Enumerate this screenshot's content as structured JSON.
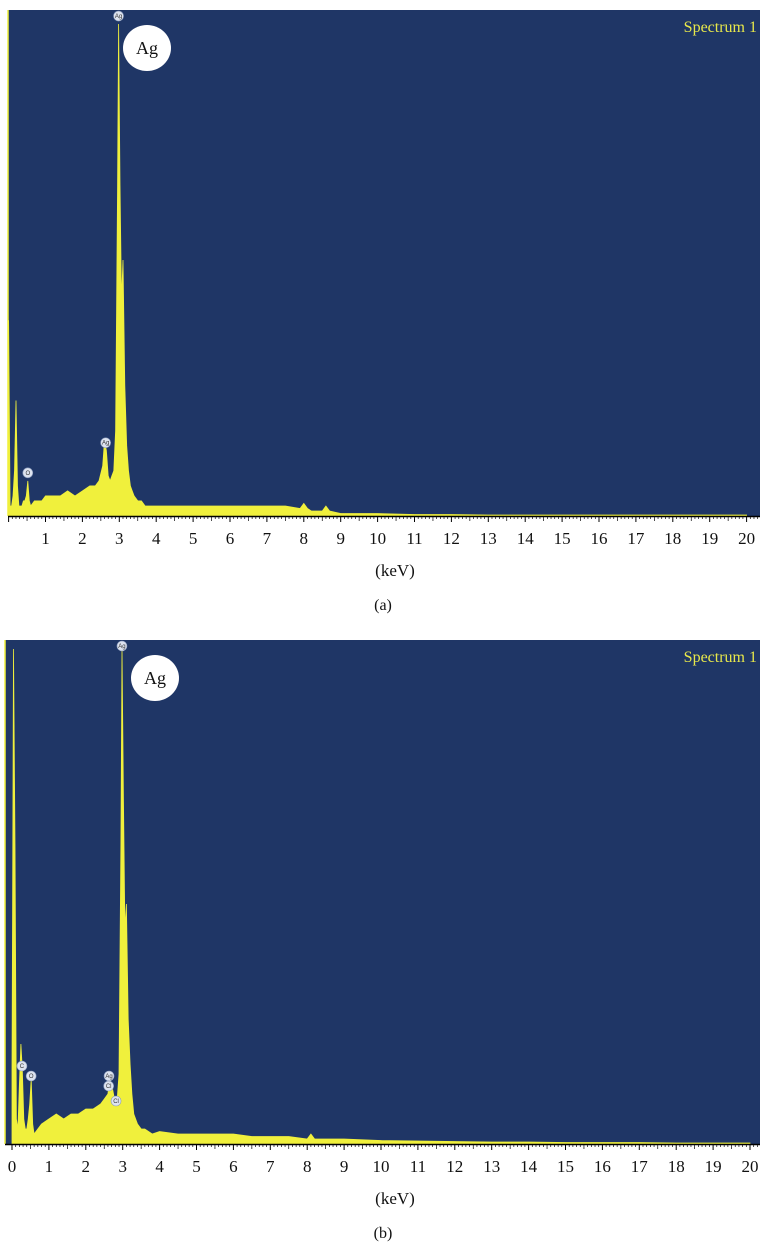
{
  "colors": {
    "plot_background": "#1f3666",
    "spectrum": "#f0f03c",
    "spectrum_label": "#e8e84a",
    "axis": "#000000",
    "callout_fill": "#ffffff"
  },
  "chart_data": [
    {
      "type": "area",
      "panel": "a",
      "caption": "(a)",
      "spectrum_label": "Spectrum 1",
      "xlabel": "(keV)",
      "ylabel": "",
      "xlim": [
        0,
        20
      ],
      "x_ticks": [
        "1",
        "2",
        "3",
        "4",
        "5",
        "6",
        "7",
        "8",
        "9",
        "10",
        "11",
        "12",
        "13",
        "14",
        "15",
        "16",
        "17",
        "18",
        "19",
        "20"
      ],
      "callout": "Ag",
      "markers": [
        {
          "label": "O",
          "x": 0.52,
          "y": 0.07
        },
        {
          "label": "Ag",
          "x": 2.63,
          "y": 0.13
        },
        {
          "label": "Ag",
          "x": 2.98,
          "y": 0.98
        }
      ],
      "series": [
        {
          "x": [
            0.0,
            0.04,
            0.08,
            0.12,
            0.16,
            0.2,
            0.24,
            0.28,
            0.32,
            0.36,
            0.4,
            0.44,
            0.48,
            0.52,
            0.56,
            0.6,
            0.7,
            0.8,
            0.9,
            1.0,
            1.2,
            1.4,
            1.6,
            1.8,
            2.0,
            2.2,
            2.35,
            2.45,
            2.55,
            2.6,
            2.65,
            2.7,
            2.75,
            2.8,
            2.85,
            2.9,
            2.95,
            2.98,
            3.02,
            3.06,
            3.1,
            3.15,
            3.2,
            3.25,
            3.3,
            3.35,
            3.4,
            3.5,
            3.6,
            3.7,
            3.8,
            4.0,
            4.5,
            5.0,
            5.5,
            6.0,
            6.5,
            7.0,
            7.5,
            7.9,
            8.0,
            8.1,
            8.2,
            8.5,
            8.6,
            8.7,
            9.0,
            9.5,
            10.0,
            11.0,
            12.0,
            13.0,
            14.0,
            15.0,
            16.0,
            17.0,
            18.0,
            19.0,
            20.0
          ],
          "y": [
            0.39,
            0.02,
            0.02,
            0.04,
            0.09,
            0.23,
            0.06,
            0.02,
            0.02,
            0.02,
            0.03,
            0.03,
            0.04,
            0.07,
            0.03,
            0.02,
            0.03,
            0.03,
            0.03,
            0.04,
            0.04,
            0.04,
            0.05,
            0.04,
            0.05,
            0.06,
            0.06,
            0.07,
            0.1,
            0.15,
            0.13,
            0.08,
            0.07,
            0.08,
            0.09,
            0.17,
            0.64,
            0.98,
            0.66,
            0.43,
            0.51,
            0.26,
            0.14,
            0.09,
            0.06,
            0.05,
            0.04,
            0.03,
            0.03,
            0.02,
            0.02,
            0.02,
            0.02,
            0.02,
            0.02,
            0.02,
            0.02,
            0.02,
            0.02,
            0.015,
            0.025,
            0.015,
            0.01,
            0.01,
            0.02,
            0.01,
            0.005,
            0.005,
            0.005,
            0.003,
            0.003,
            0.002,
            0.002,
            0.002,
            0.002,
            0.002,
            0.002,
            0.002,
            0.002
          ]
        }
      ]
    },
    {
      "type": "area",
      "panel": "b",
      "caption": "(b)",
      "spectrum_label": "Spectrum 1",
      "xlabel": "(keV)",
      "ylabel": "",
      "xlim": [
        0,
        20
      ],
      "x_ticks": [
        "0",
        "1",
        "2",
        "3",
        "4",
        "5",
        "6",
        "7",
        "8",
        "9",
        "10",
        "11",
        "12",
        "13",
        "14",
        "15",
        "16",
        "17",
        "18",
        "19",
        "20"
      ],
      "callout": "Ag",
      "markers": [
        {
          "label": "C",
          "x": 0.27,
          "y": 0.14
        },
        {
          "label": "O",
          "x": 0.52,
          "y": 0.12
        },
        {
          "label": "Ag",
          "x": 2.63,
          "y": 0.12
        },
        {
          "label": "Cl",
          "x": 2.62,
          "y": 0.1
        },
        {
          "label": "Cl",
          "x": 2.82,
          "y": 0.07
        },
        {
          "label": "Ag",
          "x": 2.98,
          "y": 0.99
        }
      ],
      "series": [
        {
          "x": [
            0.0,
            0.04,
            0.08,
            0.12,
            0.16,
            0.2,
            0.24,
            0.28,
            0.32,
            0.36,
            0.4,
            0.44,
            0.48,
            0.52,
            0.56,
            0.6,
            0.7,
            0.8,
            1.0,
            1.2,
            1.4,
            1.6,
            1.8,
            2.0,
            2.2,
            2.4,
            2.5,
            2.6,
            2.65,
            2.7,
            2.75,
            2.8,
            2.85,
            2.9,
            2.95,
            2.98,
            3.02,
            3.06,
            3.1,
            3.15,
            3.2,
            3.25,
            3.3,
            3.4,
            3.5,
            3.6,
            3.8,
            4.0,
            4.5,
            5.0,
            5.5,
            6.0,
            6.5,
            7.0,
            7.5,
            8.0,
            8.1,
            8.2,
            8.5,
            9.0,
            10.0,
            11.0,
            12.0,
            13.0,
            14.0,
            15.0,
            16.0,
            17.0,
            18.0,
            19.0,
            20.0
          ],
          "y": [
            0.15,
            0.99,
            0.6,
            0.05,
            0.03,
            0.12,
            0.2,
            0.15,
            0.05,
            0.03,
            0.03,
            0.05,
            0.08,
            0.13,
            0.04,
            0.02,
            0.03,
            0.04,
            0.05,
            0.06,
            0.05,
            0.06,
            0.06,
            0.07,
            0.07,
            0.08,
            0.09,
            0.1,
            0.13,
            0.12,
            0.1,
            0.08,
            0.09,
            0.14,
            0.6,
            0.99,
            0.7,
            0.43,
            0.48,
            0.25,
            0.16,
            0.1,
            0.06,
            0.04,
            0.03,
            0.03,
            0.02,
            0.025,
            0.02,
            0.02,
            0.02,
            0.02,
            0.015,
            0.015,
            0.015,
            0.01,
            0.02,
            0.01,
            0.01,
            0.01,
            0.007,
            0.006,
            0.005,
            0.004,
            0.004,
            0.003,
            0.003,
            0.003,
            0.002,
            0.002,
            0.002
          ]
        }
      ]
    }
  ]
}
